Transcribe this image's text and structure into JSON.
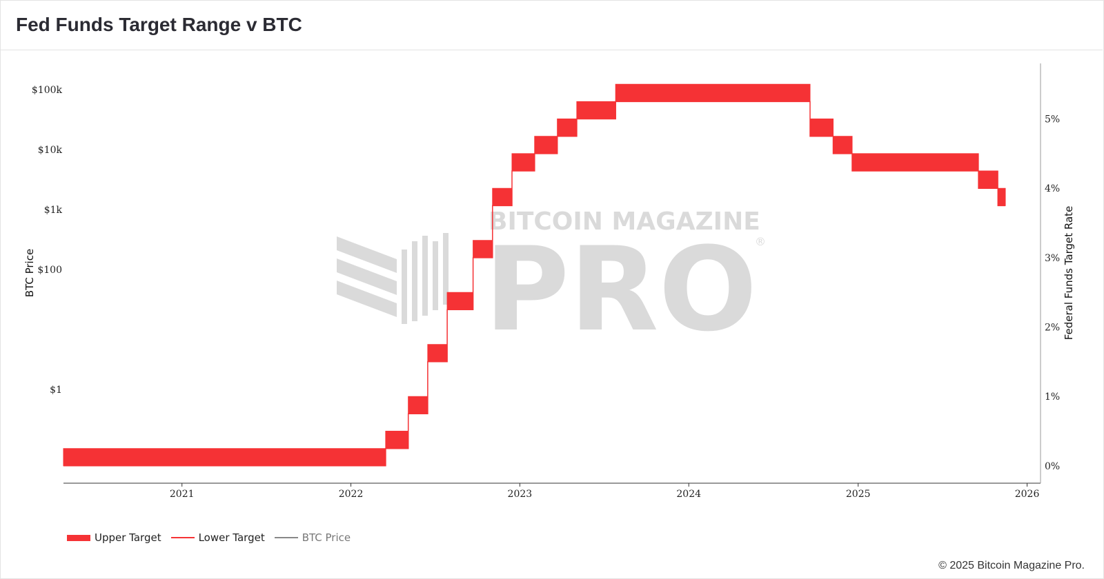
{
  "page": {
    "title": "Fed Funds Target Range v BTC",
    "watermark_top": "BITCOIN MAGAZINE",
    "watermark_main": "PRO",
    "watermark_mark": "®",
    "copyright": "© 2025 Bitcoin Magazine Pro."
  },
  "colors": {
    "band": "#f53235",
    "lower_line": "#f53235",
    "btc_line": "#888888",
    "axis": "#333333",
    "watermark": "#d9d9d9"
  },
  "chart_data": {
    "type": "area",
    "title": "Fed Funds Target Range v BTC",
    "x_axis": {
      "ticks": [
        "2021",
        "2022",
        "2023",
        "2024",
        "2025",
        "2026"
      ],
      "range": [
        "2020-04-20",
        "2026-01-30"
      ]
    },
    "y_left": {
      "label": "BTC Price",
      "scale": "log",
      "ticks": [
        "$1",
        "$100",
        "$1k",
        "$10k",
        "$100k"
      ]
    },
    "y_right": {
      "label": "Federal Funds Target Rate",
      "ticks": [
        "0%",
        "1%",
        "2%",
        "3%",
        "4%",
        "5%"
      ],
      "range": [
        -0.25,
        5.8
      ]
    },
    "grid": false,
    "legend_position": "bottom-left",
    "series": [
      {
        "name": "Upper Target",
        "style": "band"
      },
      {
        "name": "Lower Target",
        "style": "line"
      },
      {
        "name": "BTC Price",
        "style": "line",
        "hidden": true,
        "values": []
      }
    ],
    "target_range": [
      {
        "date": "2020-04-20",
        "lower": 0.0,
        "upper": 0.25
      },
      {
        "date": "2022-03-17",
        "lower": 0.25,
        "upper": 0.5
      },
      {
        "date": "2022-05-05",
        "lower": 0.75,
        "upper": 1.0
      },
      {
        "date": "2022-06-16",
        "lower": 1.5,
        "upper": 1.75
      },
      {
        "date": "2022-07-28",
        "lower": 2.25,
        "upper": 2.5
      },
      {
        "date": "2022-09-22",
        "lower": 3.0,
        "upper": 3.25
      },
      {
        "date": "2022-11-03",
        "lower": 3.75,
        "upper": 4.0
      },
      {
        "date": "2022-12-15",
        "lower": 4.25,
        "upper": 4.5
      },
      {
        "date": "2023-02-02",
        "lower": 4.5,
        "upper": 4.75
      },
      {
        "date": "2023-03-23",
        "lower": 4.75,
        "upper": 5.0
      },
      {
        "date": "2023-05-04",
        "lower": 5.0,
        "upper": 5.25
      },
      {
        "date": "2023-07-27",
        "lower": 5.25,
        "upper": 5.5
      },
      {
        "date": "2024-09-19",
        "lower": 4.75,
        "upper": 5.0
      },
      {
        "date": "2024-11-08",
        "lower": 4.5,
        "upper": 4.75
      },
      {
        "date": "2024-12-19",
        "lower": 4.25,
        "upper": 4.5
      },
      {
        "date": "2025-09-18",
        "lower": 4.0,
        "upper": 4.25
      },
      {
        "date": "2025-10-30",
        "lower": 3.75,
        "upper": 4.0
      },
      {
        "date": "2025-11-15",
        "lower": 3.75,
        "upper": 4.0
      }
    ]
  },
  "legend": {
    "items": [
      {
        "label": "Upper Target",
        "active": true
      },
      {
        "label": "Lower Target",
        "active": true
      },
      {
        "label": "BTC Price",
        "active": false
      }
    ]
  }
}
